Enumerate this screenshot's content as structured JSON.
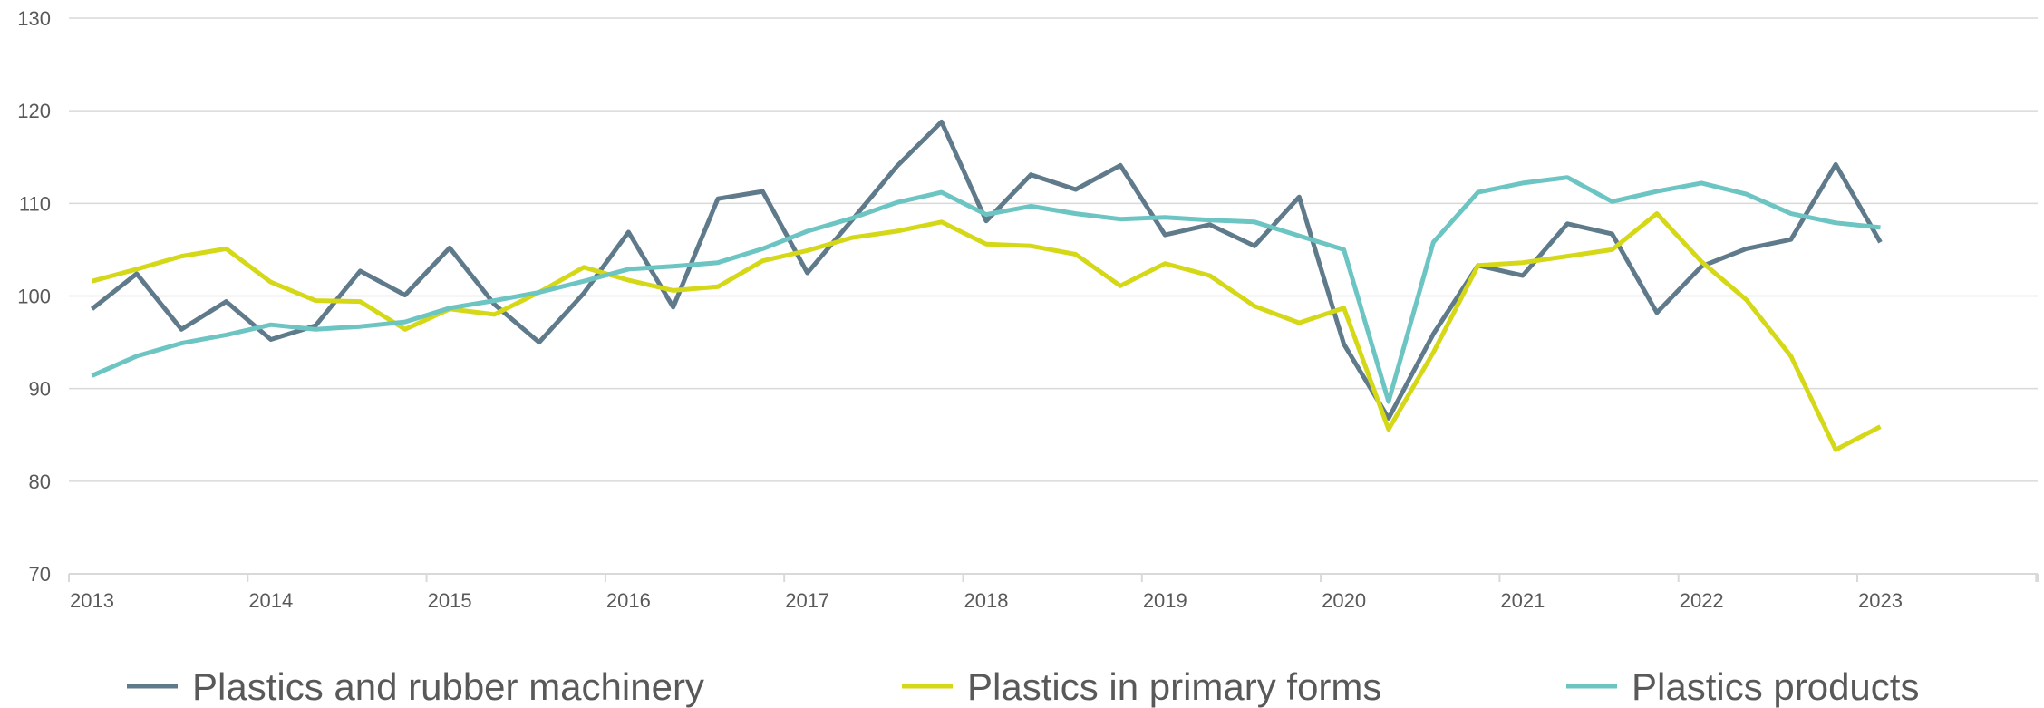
{
  "chart_data": {
    "type": "line",
    "title": "",
    "xlabel": "",
    "ylabel": "",
    "ylim": [
      70,
      130
    ],
    "yticks": [
      70,
      80,
      90,
      100,
      110,
      120,
      130
    ],
    "xticks": [
      2013,
      2014,
      2015,
      2016,
      2017,
      2018,
      2019,
      2020,
      2021,
      2022,
      2023
    ],
    "xtick_labels": [
      "2013",
      "2014",
      "2015",
      "2016",
      "2017",
      "2018",
      "2019",
      "2020",
      "2021",
      "2022",
      "2023"
    ],
    "grid": "horizontal",
    "legend_position": "bottom",
    "x": [
      2013.0,
      2013.25,
      2013.5,
      2013.75,
      2014.0,
      2014.25,
      2014.5,
      2014.75,
      2015.0,
      2015.25,
      2015.5,
      2015.75,
      2016.0,
      2016.25,
      2016.5,
      2016.75,
      2017.0,
      2017.25,
      2017.5,
      2017.75,
      2018.0,
      2018.25,
      2018.5,
      2018.75,
      2019.0,
      2019.25,
      2019.5,
      2019.75,
      2020.0,
      2020.25,
      2020.5,
      2020.75,
      2021.0,
      2021.25,
      2021.5,
      2021.75,
      2022.0,
      2022.25,
      2022.5,
      2022.75,
      2023.0
    ],
    "series": [
      {
        "name": "Plastics and rubber machinery",
        "color": "#5f7a8a",
        "values": [
          98.6,
          102.4,
          96.4,
          99.4,
          95.3,
          96.8,
          102.7,
          100.1,
          105.2,
          99.1,
          95.0,
          100.3,
          106.9,
          98.8,
          110.5,
          111.3,
          102.5,
          108.2,
          114.0,
          118.8,
          108.1,
          113.1,
          111.5,
          114.1,
          106.6,
          107.7,
          105.4,
          110.7,
          94.8,
          86.8,
          95.9,
          103.3,
          102.2,
          107.8,
          106.7,
          98.2,
          103.2,
          105.1,
          106.1,
          114.2,
          105.8
        ]
      },
      {
        "name": "Plastics in primary forms",
        "color": "#d4d817",
        "values": [
          101.6,
          102.9,
          104.3,
          105.1,
          101.5,
          99.5,
          99.4,
          96.4,
          98.6,
          98.0,
          100.4,
          103.1,
          101.7,
          100.6,
          101.0,
          103.8,
          104.9,
          106.3,
          107.0,
          108.0,
          105.6,
          105.4,
          104.5,
          101.1,
          103.5,
          102.2,
          98.9,
          97.1,
          98.7,
          85.6,
          93.9,
          103.3,
          103.6,
          104.3,
          105.0,
          108.9,
          103.7,
          99.6,
          93.5,
          83.4,
          85.9
        ]
      },
      {
        "name": "Plastics products",
        "color": "#6cc5c2",
        "values": [
          91.4,
          93.5,
          94.9,
          95.8,
          96.9,
          96.4,
          96.7,
          97.2,
          98.7,
          99.5,
          100.4,
          101.6,
          102.9,
          103.2,
          103.6,
          105.1,
          107.0,
          108.4,
          110.1,
          111.2,
          108.8,
          109.7,
          108.9,
          108.3,
          108.5,
          108.2,
          108.0,
          106.5,
          105.0,
          88.6,
          105.8,
          111.2,
          112.2,
          112.8,
          110.2,
          111.3,
          112.2,
          111.0,
          108.9,
          107.9,
          107.4
        ]
      }
    ]
  }
}
